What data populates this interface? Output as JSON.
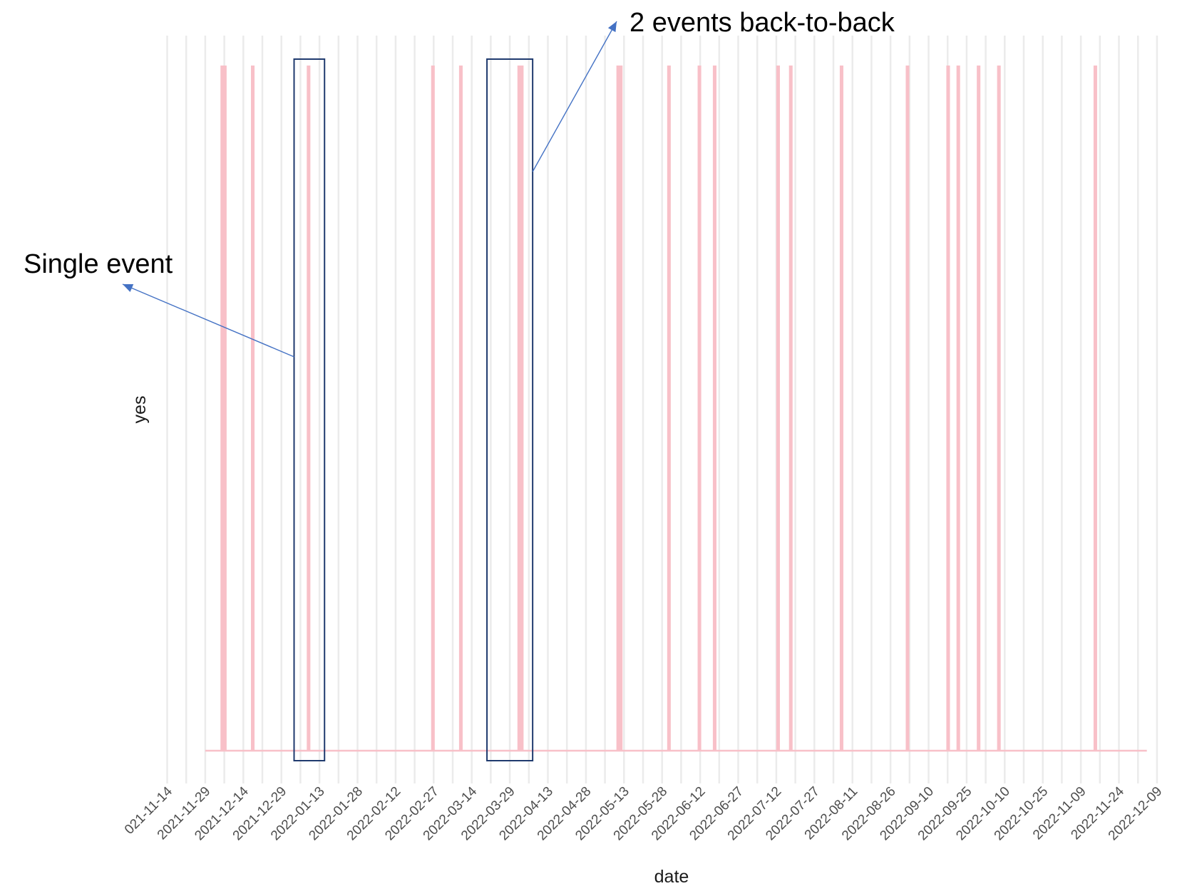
{
  "chart_data": {
    "type": "bar",
    "xlabel": "date",
    "ylabel": "yes",
    "x_ticks": [
      "2021-11-14",
      "2021-11-29",
      "2021-12-14",
      "2021-12-29",
      "2022-01-13",
      "2022-01-28",
      "2022-02-12",
      "2022-02-27",
      "2022-03-14",
      "2022-03-29",
      "2022-04-13",
      "2022-04-28",
      "2022-05-13",
      "2022-05-28",
      "2022-06-12",
      "2022-06-27",
      "2022-07-12",
      "2022-07-27",
      "2022-08-11",
      "2022-08-26",
      "2022-09-10",
      "2022-09-25",
      "2022-10-10",
      "2022-10-25",
      "2022-11-09",
      "2022-11-24",
      "2022-12-09"
    ],
    "first_tick_visible_text": "021-11-14",
    "xlim": [
      "2021-11-14",
      "2022-12-14"
    ],
    "series_range": [
      "2021-11-29",
      "2022-12-05"
    ],
    "events": [
      {
        "date": "2021-12-05",
        "days": 1
      },
      {
        "date": "2021-12-06",
        "days": 1
      },
      {
        "date": "2021-12-17",
        "days": 1
      },
      {
        "date": "2022-01-08",
        "days": 1
      },
      {
        "date": "2022-02-26",
        "days": 1
      },
      {
        "date": "2022-03-09",
        "days": 1
      },
      {
        "date": "2022-04-01",
        "days": 2
      },
      {
        "date": "2022-05-10",
        "days": 2
      },
      {
        "date": "2022-05-30",
        "days": 1
      },
      {
        "date": "2022-06-11",
        "days": 1
      },
      {
        "date": "2022-06-17",
        "days": 1
      },
      {
        "date": "2022-07-12",
        "days": 1
      },
      {
        "date": "2022-07-17",
        "days": 1
      },
      {
        "date": "2022-08-06",
        "days": 1
      },
      {
        "date": "2022-09-01",
        "days": 1
      },
      {
        "date": "2022-09-17",
        "days": 1
      },
      {
        "date": "2022-09-21",
        "days": 1
      },
      {
        "date": "2022-09-29",
        "days": 1
      },
      {
        "date": "2022-10-07",
        "days": 1
      },
      {
        "date": "2022-11-14",
        "days": 1
      }
    ],
    "grid": true,
    "bar_color": "#f8c0c8",
    "highlights": [
      {
        "from": "2022-01-03",
        "to": "2022-01-15",
        "label": "Single event"
      },
      {
        "from": "2022-03-20",
        "to": "2022-04-07",
        "label": "2 events back-to-back"
      }
    ]
  },
  "colors": {
    "bars": "#f8c0c8",
    "grid": "#ebebeb",
    "box": "#1f3a6e",
    "arrow": "#4472c4"
  }
}
